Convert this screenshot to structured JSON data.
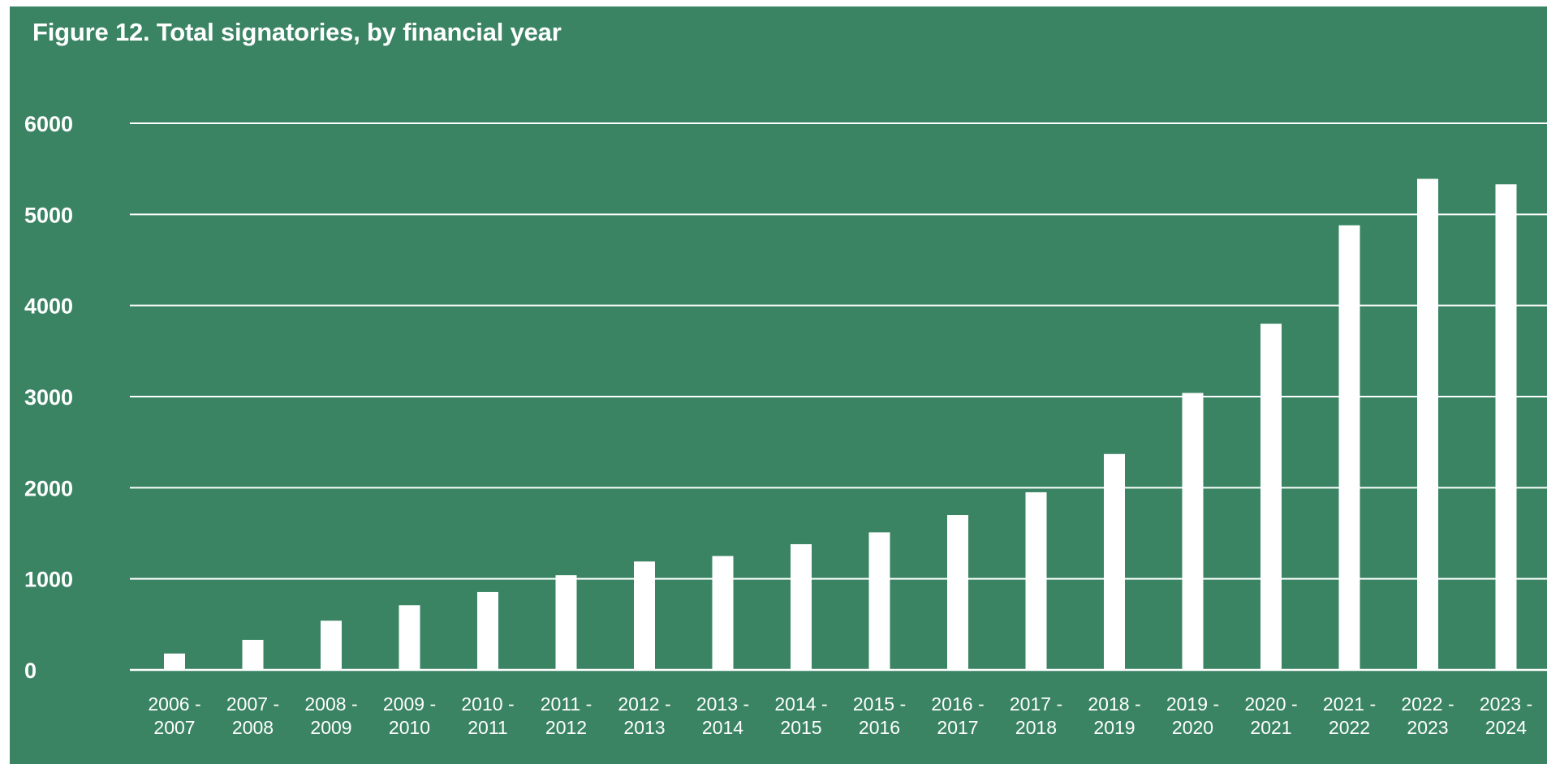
{
  "chart_data": {
    "type": "bar",
    "title": "Figure 12. Total signatories, by financial year",
    "xlabel": "",
    "ylabel": "",
    "categories": [
      [
        "2006 -",
        "2007"
      ],
      [
        "2007 -",
        "2008"
      ],
      [
        "2008 -",
        "2009"
      ],
      [
        "2009 -",
        "2010"
      ],
      [
        "2010 -",
        "2011"
      ],
      [
        "2011 -",
        "2012"
      ],
      [
        "2012 -",
        "2013"
      ],
      [
        "2013 -",
        "2014"
      ],
      [
        "2014 -",
        "2015"
      ],
      [
        "2015 -",
        "2016"
      ],
      [
        "2016 -",
        "2017"
      ],
      [
        "2017 -",
        "2018"
      ],
      [
        "2018 -",
        "2019"
      ],
      [
        "2019 -",
        "2020"
      ],
      [
        "2020 -",
        "2021"
      ],
      [
        "2021 -",
        "2022"
      ],
      [
        "2022 -",
        "2023"
      ],
      [
        "2023 -",
        "2024"
      ]
    ],
    "values": [
      180,
      330,
      540,
      710,
      855,
      1040,
      1190,
      1250,
      1380,
      1510,
      1700,
      1950,
      2370,
      3040,
      3800,
      4880,
      5390,
      5330
    ],
    "ylim": [
      0,
      6000
    ],
    "yticks": [
      0,
      1000,
      2000,
      3000,
      4000,
      5000,
      6000
    ],
    "grid": true,
    "legend": "none",
    "colors": {
      "background": "#3a8464",
      "bars": "#ffffff",
      "gridlines": "#ffffff",
      "text": "#ffffff"
    }
  }
}
